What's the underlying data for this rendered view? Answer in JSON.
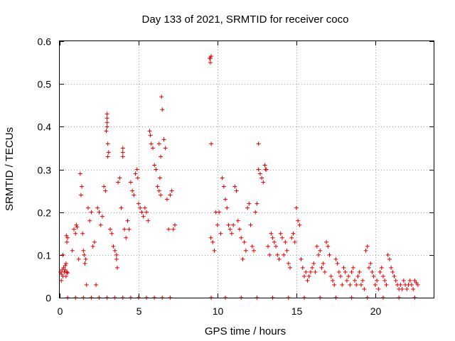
{
  "chart_data": {
    "type": "scatter",
    "title": "Day 133 of 2021, SRMTID for receiver coco",
    "xlabel": "GPS time / hours",
    "ylabel": "SRMTID / TECUs",
    "xlim": [
      0,
      23.7
    ],
    "ylim": [
      0,
      0.6
    ],
    "xticks": [
      0,
      5,
      10,
      15,
      20
    ],
    "yticks": [
      0,
      0.1,
      0.2,
      0.3,
      0.4,
      0.5,
      0.6
    ],
    "ytick_labels": [
      "0",
      "0.1",
      "0.2",
      "0.3",
      "0.4",
      "0.5",
      "0.6"
    ],
    "grid": true,
    "marker": "+",
    "color": "#e00000",
    "series": [
      {
        "name": "SRMTID",
        "x": [
          0.05,
          0.1,
          0.15,
          0.2,
          0.25,
          0.3,
          0.35,
          0.4,
          0.45,
          0.5,
          0.1,
          0.2,
          0.3,
          0.4,
          0.35,
          0.45,
          0.5,
          0.42,
          0.8,
          0.9,
          1.0,
          1.05,
          1.1,
          1.2,
          1.3,
          1.35,
          1.4,
          1.45,
          1.5,
          1.55,
          1.6,
          1.65,
          1.7,
          1.8,
          1.9,
          2.0,
          2.1,
          2.2,
          2.3,
          2.4,
          2.5,
          2.6,
          2.7,
          2.8,
          2.9,
          3.0,
          3.0,
          3.0,
          3.05,
          3.1,
          3.2,
          3.3,
          3.4,
          3.5,
          3.6,
          3.6,
          3.65,
          3.7,
          3.8,
          3.9,
          4.0,
          4.0,
          4.0,
          4.1,
          4.2,
          4.3,
          4.4,
          4.5,
          4.6,
          4.7,
          4.8,
          4.9,
          4.95,
          5.0,
          5.1,
          5.2,
          5.3,
          5.4,
          5.5,
          5.6,
          5.7,
          5.75,
          5.8,
          5.9,
          6.0,
          6.1,
          6.2,
          6.3,
          6.4,
          6.45,
          6.5,
          6.6,
          6.7,
          6.8,
          6.9,
          7.0,
          7.1,
          7.2,
          7.3,
          9.5,
          9.55,
          9.6,
          9.7,
          9.8,
          9.9,
          10.0,
          10.1,
          10.2,
          10.3,
          10.4,
          10.5,
          10.6,
          10.7,
          10.8,
          10.9,
          11.0,
          11.1,
          11.2,
          11.3,
          11.4,
          11.5,
          11.6,
          11.7,
          11.8,
          11.9,
          12.0,
          12.1,
          12.2,
          12.3,
          12.4,
          12.5,
          12.6,
          12.7,
          12.8,
          12.9,
          13.0,
          13.1,
          13.2,
          13.3,
          13.4,
          13.5,
          13.6,
          13.7,
          13.8,
          13.9,
          14.0,
          14.1,
          14.2,
          14.3,
          14.4,
          14.5,
          14.6,
          14.7,
          14.8,
          14.9,
          15.0,
          15.1,
          15.2,
          15.3,
          15.4,
          15.5,
          15.6,
          15.7,
          15.8,
          15.9,
          16.0,
          16.1,
          16.2,
          16.3,
          16.4,
          16.5,
          16.6,
          16.7,
          16.8,
          16.9,
          17.0,
          17.1,
          17.2,
          17.3,
          17.4,
          17.5,
          17.6,
          17.7,
          17.8,
          17.9,
          18.0,
          18.1,
          18.2,
          18.3,
          18.4,
          18.5,
          18.6,
          18.7,
          18.8,
          18.9,
          19.0,
          19.1,
          19.2,
          19.3,
          19.4,
          19.5,
          19.6,
          19.7,
          19.8,
          19.9,
          20.0,
          20.1,
          20.2,
          20.3,
          20.4,
          20.5,
          20.6,
          20.7,
          20.8,
          20.9,
          21.0,
          21.1,
          21.2,
          21.3,
          21.4,
          21.5,
          21.6,
          21.7,
          21.8,
          21.9,
          22.0,
          22.1,
          22.2,
          22.3,
          22.4,
          22.5,
          22.6,
          22.7,
          0.5,
          1.0,
          1.5,
          2.0,
          2.5,
          3.0,
          3.5,
          4.0,
          4.5,
          5.0,
          5.5,
          6.0,
          6.5,
          7.0,
          9.6,
          10.5,
          11.5,
          12.5,
          13.5,
          14.5,
          15.5,
          16.5,
          17.5,
          18.5,
          19.5,
          20.5,
          21.5,
          22.5,
          2.95,
          3.0,
          3.05,
          6.3,
          6.35,
          6.4,
          9.55,
          9.6,
          9.58,
          12.6,
          13.0,
          13.05
        ],
        "y": [
          0.06,
          0.055,
          0.065,
          0.05,
          0.07,
          0.06,
          0.075,
          0.08,
          0.13,
          0.14,
          0.04,
          0.1,
          0.06,
          0.05,
          0.065,
          0.06,
          0.058,
          0.145,
          0.11,
          0.16,
          0.15,
          0.17,
          0.165,
          0.09,
          0.29,
          0.24,
          0.26,
          0.15,
          0.11,
          0.1,
          0.08,
          0.09,
          0.03,
          0.21,
          0.18,
          0.2,
          0.12,
          0.13,
          0.03,
          0.21,
          0.2,
          0.17,
          0.19,
          0.26,
          0.25,
          0.42,
          0.43,
          0.4,
          0.36,
          0.34,
          0.16,
          0.15,
          0.12,
          0.11,
          0.1,
          0.09,
          0.07,
          0.27,
          0.28,
          0.21,
          0.35,
          0.34,
          0.33,
          0.16,
          0.14,
          0.18,
          0.16,
          0.27,
          0.25,
          0.24,
          0.29,
          0.3,
          0.28,
          0.22,
          0.21,
          0.2,
          0.19,
          0.21,
          0.2,
          0.18,
          0.39,
          0.38,
          0.36,
          0.35,
          0.31,
          0.3,
          0.26,
          0.25,
          0.24,
          0.47,
          0.44,
          0.37,
          0.35,
          0.23,
          0.16,
          0.24,
          0.25,
          0.16,
          0.17,
          0.56,
          0.55,
          0.36,
          0.13,
          0.11,
          0.2,
          0.17,
          0.2,
          0.15,
          0.28,
          0.26,
          0.23,
          0.21,
          0.17,
          0.16,
          0.15,
          0.17,
          0.26,
          0.25,
          0.18,
          0.16,
          0.14,
          0.09,
          0.13,
          0.11,
          0.21,
          0.22,
          0.17,
          0.12,
          0.11,
          0.2,
          0.22,
          0.3,
          0.29,
          0.28,
          0.27,
          0.31,
          0.3,
          0.12,
          0.1,
          0.15,
          0.14,
          0.13,
          0.12,
          0.1,
          0.09,
          0.15,
          0.14,
          0.1,
          0.13,
          0.11,
          0.08,
          0.07,
          0.14,
          0.15,
          0.13,
          0.21,
          0.18,
          0.17,
          0.09,
          0.07,
          0.05,
          0.06,
          0.04,
          0.05,
          0.06,
          0.07,
          0.08,
          0.06,
          0.12,
          0.1,
          0.11,
          0.07,
          0.08,
          0.06,
          0.13,
          0.12,
          0.1,
          0.05,
          0.04,
          0.03,
          0.09,
          0.08,
          0.06,
          0.05,
          0.03,
          0.07,
          0.06,
          0.04,
          0.05,
          0.03,
          0.06,
          0.07,
          0.04,
          0.03,
          0.05,
          0.06,
          0.03,
          0.04,
          0.02,
          0.11,
          0.12,
          0.07,
          0.08,
          0.06,
          0.05,
          0.03,
          0.04,
          0.02,
          0.06,
          0.07,
          0.05,
          0.04,
          0.03,
          0.1,
          0.09,
          0.07,
          0.06,
          0.05,
          0.04,
          0.03,
          0.02,
          0.03,
          0.02,
          0.04,
          0.03,
          0.02,
          0.03,
          0.04,
          0.03,
          0.02,
          0.04,
          0.035,
          0.03,
          0.0,
          0.0,
          0.0,
          0.0,
          0.0,
          0.0,
          0.0,
          0.0,
          0.0,
          0.0,
          0.0,
          0.0,
          0.0,
          0.0,
          0.0,
          0.0,
          0.0,
          0.0,
          0.0,
          0.0,
          0.0,
          0.0,
          0.0,
          0.0,
          0.0,
          0.0,
          0.0,
          0.0,
          0.39,
          0.41,
          0.33,
          0.36,
          0.28,
          0.33,
          0.56,
          0.565,
          0.14,
          0.36,
          0.31,
          0.3
        ]
      }
    ]
  }
}
